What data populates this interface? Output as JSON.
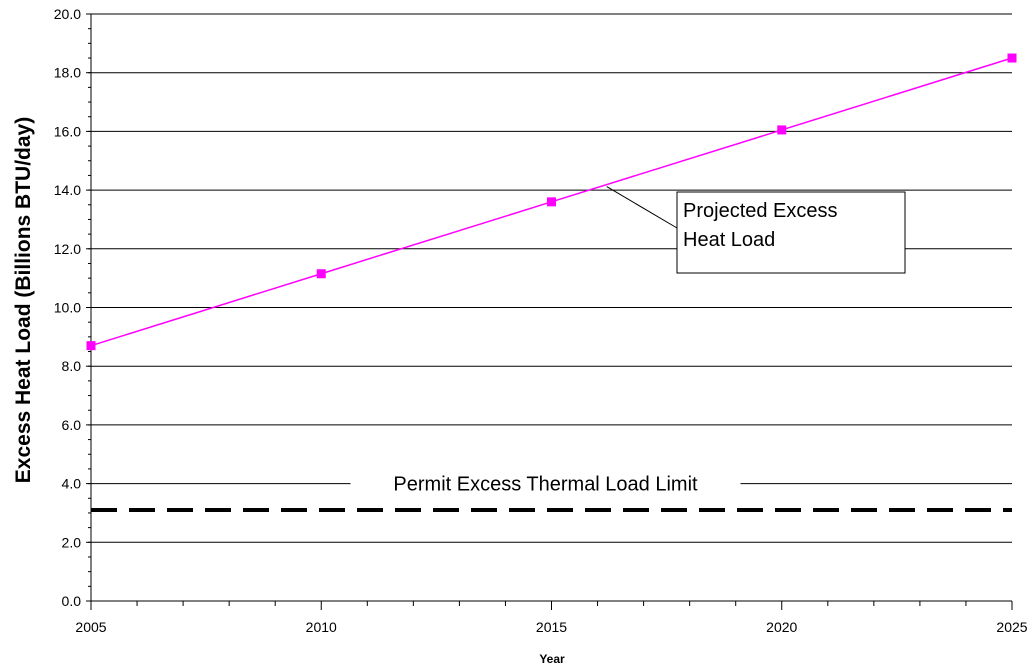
{
  "chart_data": {
    "type": "line",
    "title": "",
    "xlabel": "Year",
    "ylabel": "Excess Heat Load (Billions BTU/day)",
    "xlim": [
      2005,
      2025
    ],
    "ylim": [
      0,
      20
    ],
    "x_ticks": [
      "2005",
      "2010",
      "2015",
      "2020",
      "2025"
    ],
    "y_ticks": [
      "0.0",
      "2.0",
      "4.0",
      "6.0",
      "8.0",
      "10.0",
      "12.0",
      "14.0",
      "16.0",
      "18.0",
      "20.0"
    ],
    "grid": "horizontal",
    "series": [
      {
        "x": [
          2005,
          2010,
          2015,
          2020,
          2025
        ],
        "y": [
          8.7,
          11.15,
          13.6,
          16.05,
          18.5
        ],
        "color": "#ff00ff",
        "marker": "square"
      }
    ],
    "reference_line": {
      "y": 3.1,
      "style": "dashed",
      "color": "#000000",
      "label": "Permit Excess Thermal Load Limit"
    },
    "callout": {
      "lines": [
        "Projected Excess",
        "Heat Load"
      ],
      "points_to_x": 2016.2
    }
  }
}
